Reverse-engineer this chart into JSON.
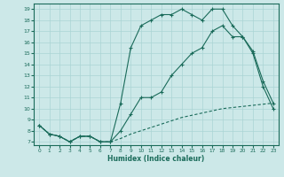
{
  "title": "",
  "xlabel": "Humidex (Indice chaleur)",
  "bg_color": "#cce8e8",
  "grid_color": "#aad4d4",
  "line_color": "#1a6b5a",
  "xlim": [
    -0.5,
    23.5
  ],
  "ylim": [
    6.7,
    19.5
  ],
  "yticks": [
    7,
    8,
    9,
    10,
    11,
    12,
    13,
    14,
    15,
    16,
    17,
    18,
    19
  ],
  "xticks": [
    0,
    1,
    2,
    3,
    4,
    5,
    6,
    7,
    8,
    9,
    10,
    11,
    12,
    13,
    14,
    15,
    16,
    17,
    18,
    19,
    20,
    21,
    22,
    23
  ],
  "line1_x": [
    0,
    1,
    2,
    3,
    4,
    5,
    6,
    7,
    8,
    9,
    10,
    11,
    12,
    13,
    14,
    15,
    16,
    17,
    18,
    19,
    20,
    21,
    22,
    23
  ],
  "line1_y": [
    8.5,
    7.7,
    7.5,
    7.0,
    7.5,
    7.5,
    7.0,
    7.0,
    10.5,
    15.5,
    17.5,
    18.0,
    18.5,
    18.5,
    19.0,
    18.5,
    18.0,
    19.0,
    19.0,
    17.5,
    16.5,
    15.0,
    12.0,
    10.0
  ],
  "line2_x": [
    0,
    1,
    2,
    3,
    4,
    5,
    6,
    7,
    8,
    9,
    10,
    11,
    12,
    13,
    14,
    15,
    16,
    17,
    18,
    19,
    20,
    21,
    22,
    23
  ],
  "line2_y": [
    8.5,
    7.7,
    7.5,
    7.0,
    7.5,
    7.5,
    7.0,
    7.0,
    8.0,
    9.5,
    11.0,
    11.0,
    11.5,
    13.0,
    14.0,
    15.0,
    15.5,
    17.0,
    17.5,
    16.5,
    16.5,
    15.2,
    12.5,
    10.5
  ],
  "line3_x": [
    0,
    1,
    2,
    3,
    4,
    5,
    6,
    7,
    8,
    9,
    10,
    11,
    12,
    13,
    14,
    15,
    16,
    17,
    18,
    19,
    20,
    21,
    22,
    23
  ],
  "line3_y": [
    8.5,
    7.7,
    7.5,
    7.0,
    7.5,
    7.5,
    7.0,
    7.0,
    7.3,
    7.7,
    8.0,
    8.3,
    8.6,
    8.9,
    9.2,
    9.4,
    9.6,
    9.8,
    10.0,
    10.1,
    10.2,
    10.3,
    10.4,
    10.5
  ]
}
